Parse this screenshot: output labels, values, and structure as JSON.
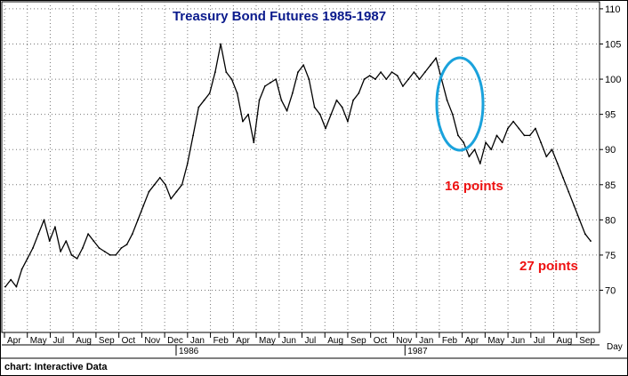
{
  "chart_data": {
    "type": "line",
    "title": "Treasury Bond Futures 1985-1987",
    "x_unit_label": "Day",
    "ylim": [
      64,
      111
    ],
    "y_ticks": [
      70,
      75,
      80,
      85,
      90,
      95,
      100,
      105,
      110
    ],
    "grid": true,
    "y_axis_side": "right",
    "x_month_labels": [
      "Apr",
      "May",
      "Jul",
      "Aug",
      "Sep",
      "Oct",
      "Nov",
      "Dec",
      "Jan",
      "Feb",
      "Apr",
      "May",
      "Jun",
      "Jul",
      "Aug",
      "Sep",
      "Oct",
      "Nov",
      "Jan",
      "Feb",
      "Apr",
      "May",
      "Jun",
      "Jul",
      "Aug",
      "Sep"
    ],
    "year_labels": [
      "1986",
      "1987"
    ],
    "series": [
      {
        "values": [
          70.5,
          71.5,
          70.5,
          73,
          74.5,
          76,
          78,
          80,
          77,
          79,
          75.5,
          77,
          75,
          74.5,
          76,
          78,
          77,
          76,
          75.5,
          75,
          75,
          76,
          76.5,
          78,
          80,
          82,
          84,
          85,
          86,
          85,
          83,
          84,
          85,
          88,
          92,
          96,
          97,
          98,
          101,
          105,
          101,
          100,
          98,
          94,
          95,
          91,
          97,
          99,
          99.5,
          100,
          97,
          95.5,
          98,
          101,
          102,
          100,
          96,
          95,
          93,
          95,
          97,
          96,
          94,
          97,
          98,
          100,
          100.5,
          100,
          101,
          100,
          101,
          100.5,
          99,
          100,
          101,
          100,
          101,
          102,
          103,
          100,
          97,
          95,
          92,
          91,
          89,
          90,
          88,
          91,
          90,
          92,
          91,
          93,
          94,
          93,
          92,
          92,
          93,
          91,
          89,
          90,
          88,
          86,
          84,
          82,
          80,
          78,
          77
        ]
      }
    ],
    "annotations": [
      {
        "text": "16 points",
        "color": "#ee1111"
      },
      {
        "text": "27 points",
        "color": "#ee1111"
      }
    ],
    "highlight_ellipse": {
      "color": "#1aa2dc"
    }
  },
  "footer": {
    "source": "chart: Interactive Data"
  }
}
